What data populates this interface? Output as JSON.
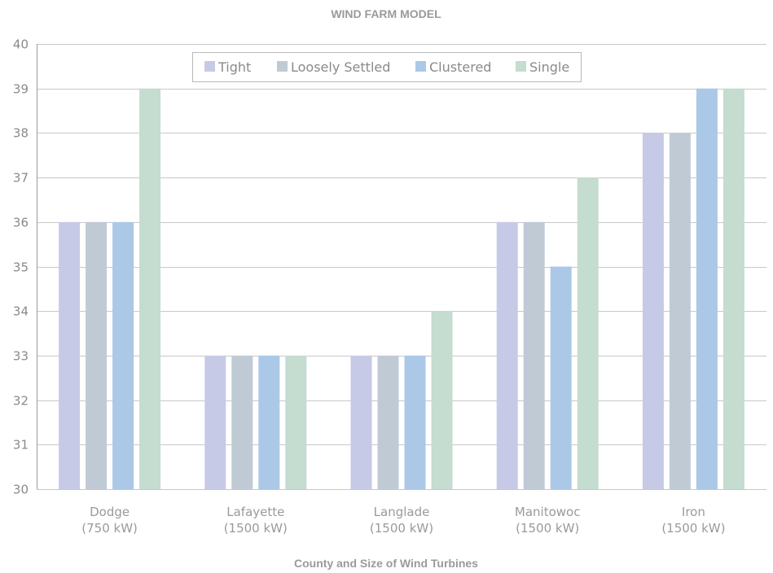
{
  "chart_data": {
    "type": "bar",
    "title": "WIND FARM MODEL",
    "xlabel": "County and Size of Wind Turbines",
    "ylabel": "",
    "ylim": [
      30,
      40
    ],
    "yticks": [
      30,
      31,
      32,
      33,
      34,
      35,
      36,
      37,
      38,
      39,
      40
    ],
    "grid": true,
    "legend_position": "top-center",
    "categories": [
      [
        "Dodge",
        "(750 kW)"
      ],
      [
        "Lafayette",
        "(1500 kW)"
      ],
      [
        "Langlade",
        "(1500 kW)"
      ],
      [
        "Manitowoc",
        "(1500 kW)"
      ],
      [
        "Iron",
        "(1500 kW)"
      ]
    ],
    "series": [
      {
        "name": "Tight",
        "color": "#c6cae6",
        "values": [
          36,
          33,
          33,
          36,
          38
        ]
      },
      {
        "name": "Loosely Settled",
        "color": "#c0cad5",
        "values": [
          36,
          33,
          33,
          36,
          38
        ]
      },
      {
        "name": "Clustered",
        "color": "#abc8e7",
        "values": [
          36,
          33,
          33,
          35,
          39
        ]
      },
      {
        "name": "Single",
        "color": "#c5dcd0",
        "values": [
          39,
          33,
          34,
          37,
          39
        ]
      }
    ]
  }
}
